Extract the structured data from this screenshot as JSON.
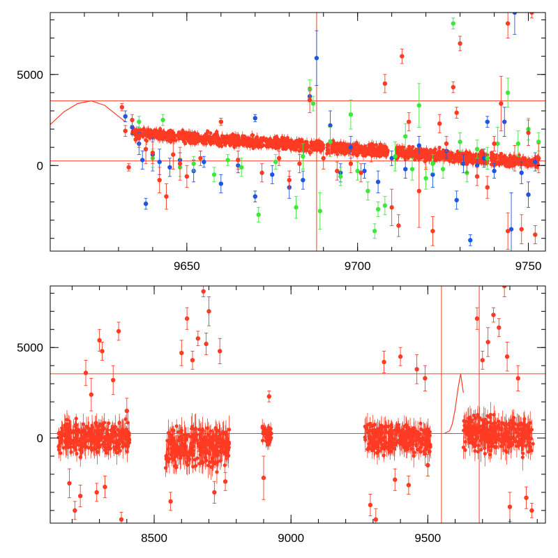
{
  "chart_data": [
    {
      "type": "scatter",
      "name": "top-panel",
      "title": "",
      "xlabel": "",
      "ylabel": "",
      "xlim": [
        9610,
        9755
      ],
      "ylim": [
        -4700,
        8400
      ],
      "x_ticks": [
        9650,
        9700,
        9750
      ],
      "x_tick_labels": [
        "9650",
        "9700",
        "9750"
      ],
      "y_ticks": [
        0,
        5000
      ],
      "y_tick_labels": [
        "0",
        "5000"
      ],
      "grid": false,
      "series": [
        {
          "name": "blue",
          "color": "#1e56e0",
          "points": [
            [
              9632,
              2700,
              300
            ],
            [
              9634,
              2100,
              400
            ],
            [
              9636,
              1200,
              600
            ],
            [
              9637,
              300,
              500
            ],
            [
              9638,
              -2100,
              300
            ],
            [
              9640,
              600,
              900
            ],
            [
              9642,
              200,
              700
            ],
            [
              9645,
              -100,
              500
            ],
            [
              9648,
              300,
              400
            ],
            [
              9652,
              -300,
              600
            ],
            [
              9655,
              200,
              300
            ],
            [
              9660,
              -1000,
              500
            ],
            [
              9665,
              0,
              400
            ],
            [
              9670,
              2600,
              200
            ],
            [
              9670,
              -1700,
              300
            ],
            [
              9675,
              -500,
              500
            ],
            [
              9680,
              -1200,
              600
            ],
            [
              9684,
              -800,
              500
            ],
            [
              9686,
              3800,
              300
            ],
            [
              9688,
              5900,
              1500
            ],
            [
              9692,
              2200,
              800
            ],
            [
              9695,
              -400,
              500
            ],
            [
              9698,
              1000,
              600
            ],
            [
              9702,
              -300,
              400
            ],
            [
              9706,
              -900,
              600
            ],
            [
              9710,
              400,
              400
            ],
            [
              9714,
              -200,
              500
            ],
            [
              9718,
              1100,
              500
            ],
            [
              9722,
              -500,
              700
            ],
            [
              9726,
              800,
              400
            ],
            [
              9729,
              -1900,
              500
            ],
            [
              9731,
              100,
              500
            ],
            [
              9733,
              -4100,
              300
            ],
            [
              9735,
              0,
              600
            ],
            [
              9737,
              400,
              500
            ],
            [
              9738,
              2400,
              300
            ],
            [
              9740,
              -300,
              400
            ],
            [
              9743,
              2400,
              800
            ],
            [
              9745,
              -3500,
              2000
            ],
            [
              9746,
              8400,
              1200
            ],
            [
              9748,
              -400,
              600
            ],
            [
              9750,
              -1600,
              700
            ],
            [
              9752,
              200,
              500
            ]
          ]
        },
        {
          "name": "green",
          "color": "#3ee83a",
          "points": [
            [
              9636,
              2400,
              300
            ],
            [
              9640,
              400,
              500
            ],
            [
              9643,
              2500,
              300
            ],
            [
              9648,
              -100,
              500
            ],
            [
              9652,
              100,
              400
            ],
            [
              9658,
              -500,
              400
            ],
            [
              9662,
              300,
              300
            ],
            [
              9666,
              -100,
              500
            ],
            [
              9671,
              -2700,
              400
            ],
            [
              9676,
              200,
              400
            ],
            [
              9682,
              -2300,
              600
            ],
            [
              9684,
              500,
              700
            ],
            [
              9686,
              4200,
              500
            ],
            [
              9687,
              3400,
              400
            ],
            [
              9689,
              -2500,
              1000
            ],
            [
              9692,
              1300,
              800
            ],
            [
              9695,
              -600,
              500
            ],
            [
              9698,
              2800,
              800
            ],
            [
              9700,
              -300,
              500
            ],
            [
              9703,
              -1400,
              500
            ],
            [
              9705,
              -3600,
              400
            ],
            [
              9706,
              -2400,
              400
            ],
            [
              9708,
              -2200,
              500
            ],
            [
              9711,
              500,
              800
            ],
            [
              9714,
              1600,
              700
            ],
            [
              9716,
              -200,
              600
            ],
            [
              9718,
              3300,
              1200
            ],
            [
              9720,
              -700,
              600
            ],
            [
              9722,
              100,
              500
            ],
            [
              9725,
              -200,
              500
            ],
            [
              9728,
              7800,
              300
            ],
            [
              9730,
              1300,
              500
            ],
            [
              9732,
              -400,
              500
            ],
            [
              9735,
              900,
              500
            ],
            [
              9738,
              400,
              600
            ],
            [
              9741,
              1200,
              900
            ],
            [
              9744,
              4000,
              800
            ],
            [
              9747,
              1200,
              700
            ],
            [
              9750,
              2000,
              600
            ],
            [
              9753,
              1300,
              500
            ]
          ]
        },
        {
          "name": "red",
          "color": "#ff3b24",
          "points": [
            [
              9631,
              3200,
              200
            ],
            [
              9632,
              1900,
              300
            ],
            [
              9633,
              -100,
              200
            ],
            [
              9634,
              2500,
              300
            ],
            [
              9636,
              1500,
              500
            ],
            [
              9638,
              900,
              800
            ],
            [
              9640,
              700,
              600
            ],
            [
              9642,
              -800,
              700
            ],
            [
              9644,
              -1700,
              700
            ],
            [
              9646,
              600,
              800
            ],
            [
              9648,
              100,
              900
            ],
            [
              9650,
              -600,
              600
            ],
            [
              9654,
              400,
              400
            ],
            [
              9660,
              2400,
              200
            ],
            [
              9665,
              300,
              500
            ],
            [
              9672,
              -400,
              500
            ],
            [
              9677,
              400,
              400
            ],
            [
              9680,
              -800,
              500
            ],
            [
              9683,
              100,
              500
            ],
            [
              9686,
              3600,
              700
            ],
            [
              9690,
              400,
              600
            ],
            [
              9694,
              -300,
              500
            ],
            [
              9698,
              100,
              500
            ],
            [
              9701,
              -400,
              500
            ],
            [
              9704,
              600,
              400
            ],
            [
              9708,
              4500,
              500
            ],
            [
              9710,
              -2300,
              1000
            ],
            [
              9712,
              -3300,
              600
            ],
            [
              9713,
              6000,
              400
            ],
            [
              9715,
              2400,
              500
            ],
            [
              9718,
              -1400,
              2000
            ],
            [
              9720,
              300,
              500
            ],
            [
              9722,
              -3600,
              800
            ],
            [
              9724,
              2300,
              500
            ],
            [
              9726,
              1200,
              400
            ],
            [
              9728,
              4300,
              300
            ],
            [
              9729,
              2900,
              300
            ],
            [
              9730,
              6700,
              400
            ],
            [
              9732,
              100,
              500
            ],
            [
              9735,
              -600,
              500
            ],
            [
              9738,
              -1200,
              600
            ],
            [
              9740,
              1200,
              400
            ],
            [
              9742,
              3400,
              1500
            ],
            [
              9744,
              7800,
              800
            ],
            [
              9744,
              -3600,
              1000
            ],
            [
              9746,
              400,
              700
            ],
            [
              9748,
              -3500,
              800
            ],
            [
              9750,
              1800,
              700
            ],
            [
              9751,
              8400,
              300
            ],
            [
              9752,
              -3800,
              500
            ],
            [
              9753,
              400,
              800
            ]
          ]
        }
      ],
      "dense_segments": [
        {
          "color": "#ff3b24",
          "x_start": 9634,
          "x_end": 9753,
          "baseline_start": 1800,
          "baseline_end": 150,
          "spread": 300,
          "gaps": [
            [
              9690,
              9691
            ],
            [
              9709,
              9711
            ],
            [
              9738,
              9739
            ]
          ]
        }
      ],
      "model_curve": {
        "color": "#ff3b24",
        "x": [
          9610,
          9614,
          9618,
          9622,
          9626,
          9630,
          9632
        ],
        "y": [
          2250,
          2950,
          3400,
          3550,
          3300,
          2700,
          2400
        ]
      },
      "hlines": [
        3550,
        250
      ],
      "vlines": [
        9688
      ]
    },
    {
      "type": "scatter",
      "name": "bottom-panel",
      "title": "",
      "xlabel": "",
      "ylabel": "",
      "xlim": [
        8120,
        9930
      ],
      "ylim": [
        -4700,
        8400
      ],
      "x_ticks": [
        8500,
        9000,
        9500
      ],
      "x_tick_labels": [
        "8500",
        "9000",
        "9500"
      ],
      "y_ticks": [
        0,
        5000
      ],
      "y_tick_labels": [
        "0",
        "5000"
      ],
      "grid": false,
      "series": [
        {
          "name": "red",
          "color": "#ff3b24",
          "points": [
            [
              8190,
              -2500,
              800
            ],
            [
              8210,
              -4000,
              500
            ],
            [
              8230,
              -3200,
              600
            ],
            [
              8250,
              3600,
              700
            ],
            [
              8270,
              2400,
              900
            ],
            [
              8290,
              -3000,
              500
            ],
            [
              8300,
              5400,
              600
            ],
            [
              8310,
              4800,
              500
            ],
            [
              8320,
              -2700,
              600
            ],
            [
              8350,
              3200,
              800
            ],
            [
              8370,
              5900,
              500
            ],
            [
              8380,
              -4500,
              400
            ],
            [
              8400,
              1500,
              700
            ],
            [
              8560,
              -3500,
              500
            ],
            [
              8600,
              4700,
              700
            ],
            [
              8620,
              6600,
              600
            ],
            [
              8640,
              4300,
              500
            ],
            [
              8660,
              5500,
              400
            ],
            [
              8680,
              8100,
              300
            ],
            [
              8690,
              5200,
              600
            ],
            [
              8700,
              7000,
              800
            ],
            [
              8720,
              -3000,
              600
            ],
            [
              8740,
              4800,
              700
            ],
            [
              8760,
              -2400,
              500
            ],
            [
              8900,
              -2200,
              1200
            ],
            [
              8920,
              2300,
              300
            ],
            [
              9290,
              -3700,
              600
            ],
            [
              9310,
              -4500,
              600
            ],
            [
              9340,
              4200,
              600
            ],
            [
              9380,
              -2300,
              600
            ],
            [
              9400,
              4500,
              500
            ],
            [
              9430,
              -2600,
              500
            ],
            [
              9460,
              3800,
              800
            ],
            [
              9490,
              3300,
              700
            ],
            [
              9500,
              -1500,
              600
            ],
            [
              9680,
              6600,
              600
            ],
            [
              9700,
              4300,
              500
            ],
            [
              9720,
              5300,
              800
            ],
            [
              9740,
              6800,
              400
            ],
            [
              9760,
              6100,
              500
            ],
            [
              9780,
              8400,
              600
            ],
            [
              9790,
              4500,
              800
            ],
            [
              9800,
              -3800,
              800
            ],
            [
              9830,
              3300,
              700
            ],
            [
              9860,
              -3300,
              600
            ],
            [
              9880,
              -4000,
              400
            ]
          ]
        }
      ],
      "dense_segments": [
        {
          "color": "#ff3b24",
          "x_start": 8150,
          "x_end": 8410,
          "baseline_start": 0,
          "baseline_end": 0,
          "spread": 800,
          "gaps": []
        },
        {
          "color": "#ff3b24",
          "x_start": 8540,
          "x_end": 8775,
          "baseline_start": -500,
          "baseline_end": -500,
          "spread": 1000,
          "gaps": []
        },
        {
          "color": "#ff3b24",
          "x_start": 8895,
          "x_end": 8930,
          "baseline_start": 200,
          "baseline_end": 200,
          "spread": 500,
          "gaps": []
        },
        {
          "color": "#ff3b24",
          "x_start": 9270,
          "x_end": 9510,
          "baseline_start": 0,
          "baseline_end": 0,
          "spread": 800,
          "gaps": []
        },
        {
          "color": "#ff3b24",
          "x_start": 9630,
          "x_end": 9885,
          "baseline_start": 300,
          "baseline_end": 100,
          "spread": 900,
          "gaps": []
        }
      ],
      "model_curve": {
        "color": "#ff3b24",
        "x": [
          9560,
          9580,
          9590,
          9600,
          9610,
          9620,
          9630
        ],
        "y": [
          250,
          400,
          800,
          1600,
          2700,
          3550,
          2500
        ]
      },
      "hlines": [
        3550,
        250
      ],
      "vlines": [
        9550,
        9688
      ]
    }
  ]
}
